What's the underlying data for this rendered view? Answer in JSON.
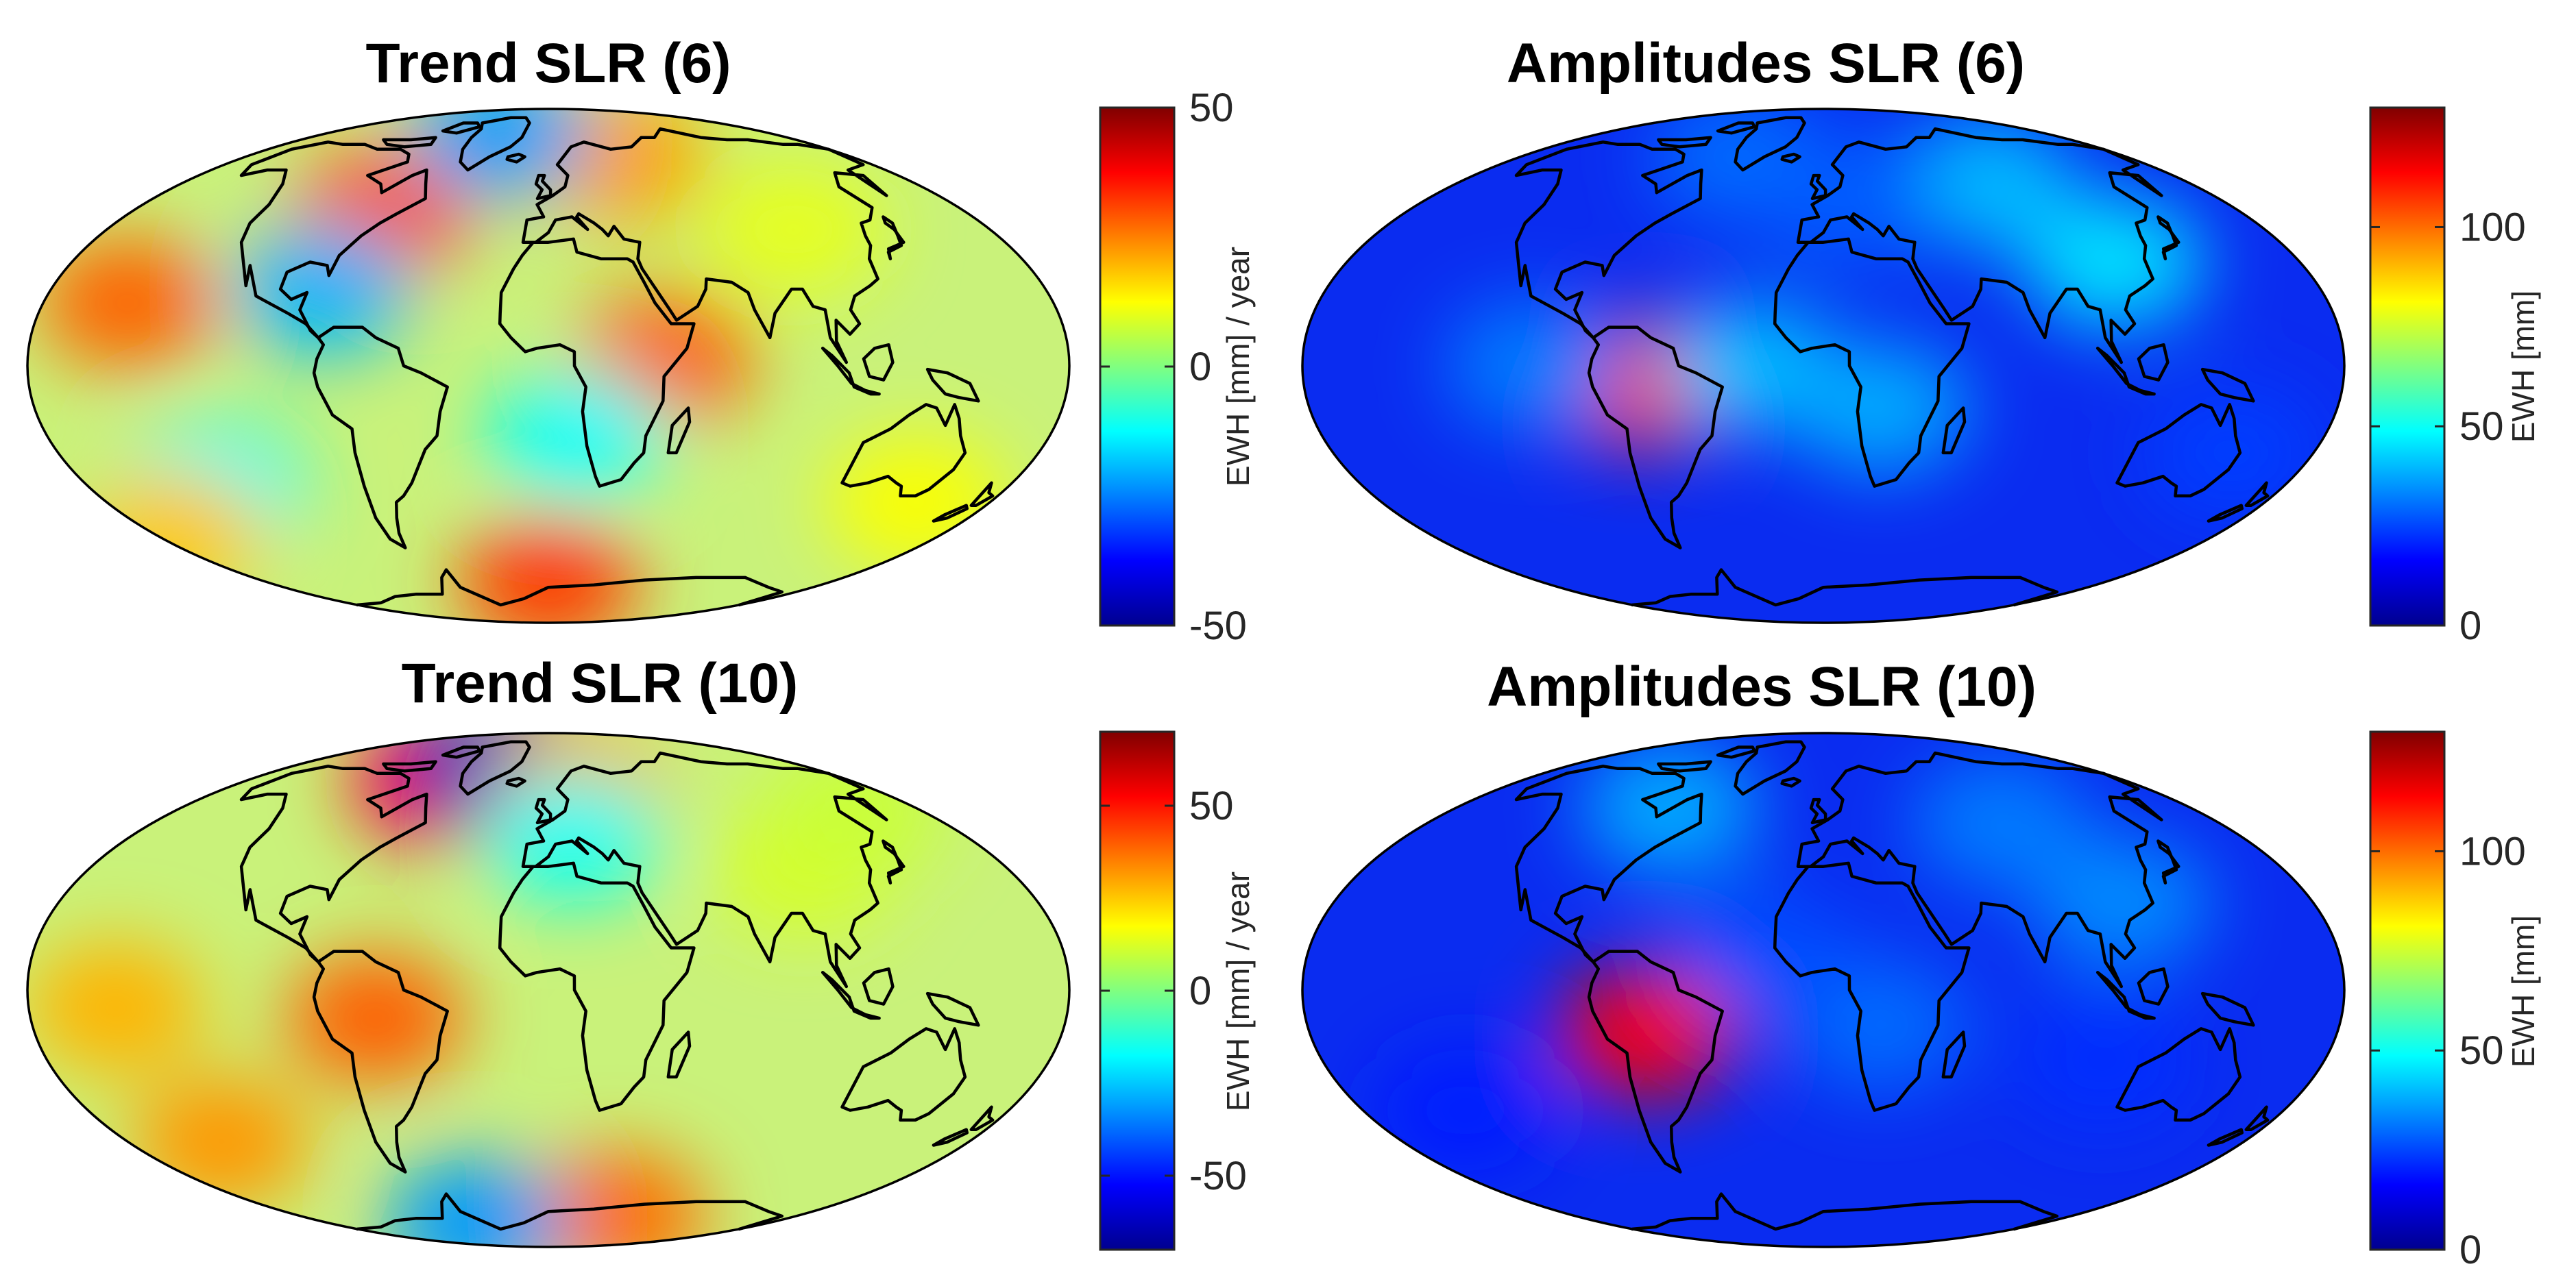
{
  "colors": {
    "jet": [
      "#00008f",
      "#0000ff",
      "#0080ff",
      "#00ffff",
      "#80ff80",
      "#ffff00",
      "#ff8000",
      "#ff0000",
      "#800000"
    ],
    "trend_background": "#c9f27a",
    "amplitude_background": "#0a2cf0",
    "coastline": "#000000"
  },
  "panels": [
    {
      "title": "Trend SLR (6)",
      "projection": "mollweide",
      "field": "trend",
      "colorbar": {
        "label": "EWH [mm] / year",
        "range": [
          -50,
          50
        ],
        "ticks": [
          {
            "value": 50,
            "label": "50"
          },
          {
            "value": 0,
            "label": "0"
          },
          {
            "value": -50,
            "label": "-50"
          }
        ]
      },
      "anomalies": [
        {
          "lon": -72,
          "lat": 45,
          "value": 30
        },
        {
          "lon": 40,
          "lat": 65,
          "value": 22
        },
        {
          "lon": 40,
          "lat": 2,
          "value": 28
        },
        {
          "lon": -150,
          "lat": 18,
          "value": 28
        },
        {
          "lon": 0,
          "lat": -68,
          "value": 32
        },
        {
          "lon": -40,
          "lat": 75,
          "value": -22
        },
        {
          "lon": -82,
          "lat": 22,
          "value": -20
        },
        {
          "lon": 10,
          "lat": -20,
          "value": -12
        },
        {
          "lon": -130,
          "lat": -35,
          "value": -12
        },
        {
          "lon": 150,
          "lat": -40,
          "value": 12
        },
        {
          "lon": -170,
          "lat": -50,
          "value": 18
        },
        {
          "lon": 100,
          "lat": 40,
          "value": 10
        }
      ]
    },
    {
      "title": "Amplitudes SLR (6)",
      "projection": "mollweide",
      "field": "amplitude",
      "colorbar": {
        "label": "EWH [mm]",
        "range": [
          0,
          130
        ],
        "ticks": [
          {
            "value": 100,
            "label": "100"
          },
          {
            "value": 50,
            "label": "50"
          },
          {
            "value": 0,
            "label": "0"
          }
        ]
      },
      "anomalies": [
        {
          "lon": -62,
          "lat": -5,
          "value": 110
        },
        {
          "lon": -25,
          "lat": 0,
          "value": 40
        },
        {
          "lon": -100,
          "lat": 0,
          "value": 32
        },
        {
          "lon": 20,
          "lat": -12,
          "value": 38
        },
        {
          "lon": 80,
          "lat": 55,
          "value": 40
        },
        {
          "lon": 110,
          "lat": 30,
          "value": 45
        },
        {
          "lon": -50,
          "lat": 65,
          "value": 30
        },
        {
          "lon": 10,
          "lat": 50,
          "value": 28
        },
        {
          "lon": 150,
          "lat": -25,
          "value": 24
        }
      ]
    },
    {
      "title": "Trend SLR (10)",
      "projection": "mollweide",
      "field": "trend",
      "colorbar": {
        "label": "EWH [mm] / year",
        "range": [
          -70,
          70
        ],
        "ticks": [
          {
            "value": 50,
            "label": "50"
          },
          {
            "value": 0,
            "label": "0"
          },
          {
            "value": -50,
            "label": "-50"
          }
        ]
      },
      "anomalies": [
        {
          "lon": -65,
          "lat": 65,
          "value": 52
        },
        {
          "lon": -40,
          "lat": 72,
          "value": -62
        },
        {
          "lon": 15,
          "lat": 62,
          "value": 30
        },
        {
          "lon": -60,
          "lat": -8,
          "value": 40
        },
        {
          "lon": -150,
          "lat": -5,
          "value": 28
        },
        {
          "lon": -140,
          "lat": -45,
          "value": 32
        },
        {
          "lon": 50,
          "lat": -72,
          "value": 38
        },
        {
          "lon": -60,
          "lat": -75,
          "value": -32
        },
        {
          "lon": 10,
          "lat": 45,
          "value": -16
        },
        {
          "lon": 100,
          "lat": 35,
          "value": 12
        },
        {
          "lon": 150,
          "lat": 55,
          "value": 10
        }
      ]
    },
    {
      "title": "Amplitudes SLR (10)",
      "projection": "mollweide",
      "field": "amplitude",
      "colorbar": {
        "label": "EWH [mm]",
        "range": [
          0,
          130
        ],
        "ticks": [
          {
            "value": 100,
            "label": "100"
          },
          {
            "value": 50,
            "label": "50"
          },
          {
            "value": 0,
            "label": "0"
          }
        ]
      },
      "anomalies": [
        {
          "lon": -62,
          "lat": -12,
          "value": 115
        },
        {
          "lon": -75,
          "lat": 55,
          "value": 38
        },
        {
          "lon": 80,
          "lat": 50,
          "value": 32
        },
        {
          "lon": 110,
          "lat": 25,
          "value": 34
        },
        {
          "lon": 20,
          "lat": -10,
          "value": 30
        },
        {
          "lon": -20,
          "lat": 10,
          "value": 26
        },
        {
          "lon": -140,
          "lat": -35,
          "value": 20
        },
        {
          "lon": 100,
          "lat": -20,
          "value": 22
        }
      ]
    }
  ]
}
